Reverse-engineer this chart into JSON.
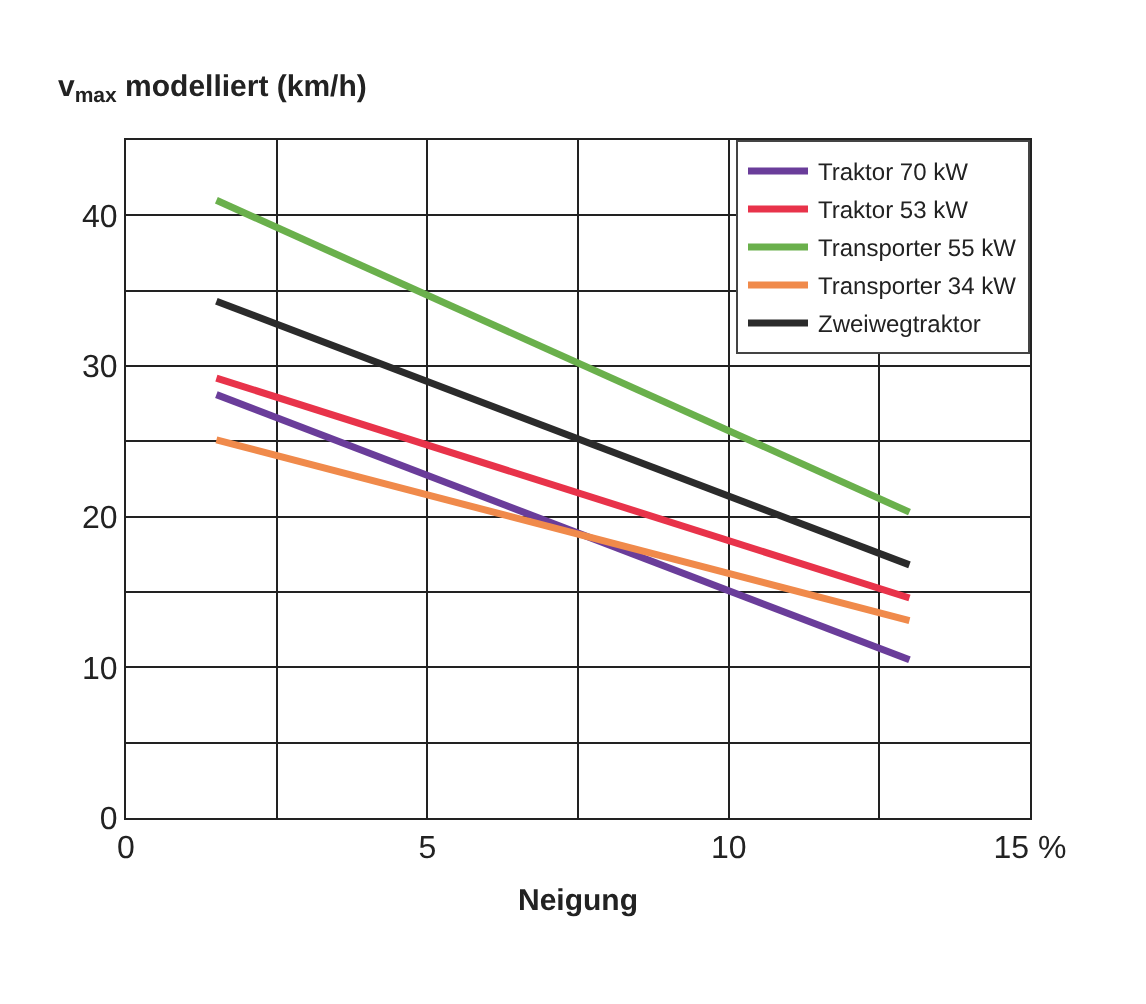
{
  "chart_data": {
    "type": "line",
    "ylabel": "v$_{max}$ modelliert (km/h)",
    "xlabel": "Neigung",
    "xlim": [
      0,
      15
    ],
    "xticks": [
      0,
      {
        "value": 2.5,
        "label": null
      },
      5,
      {
        "value": 7.5,
        "label": null
      },
      10,
      {
        "value": 12.5,
        "label": null
      },
      {
        "value": 15,
        "label": "15 %"
      }
    ],
    "ylim": [
      0,
      45
    ],
    "yticks": [
      0,
      {
        "value": 5,
        "label": null
      },
      10,
      {
        "value": 15,
        "label": null
      },
      20,
      {
        "value": 25,
        "label": null
      },
      30,
      {
        "value": 35,
        "label": null
      },
      40,
      {
        "value": 45,
        "label": null
      }
    ],
    "grid": true,
    "legend": "top right",
    "marker": "none",
    "line_style": "solid",
    "x": [
      1.5,
      13
    ],
    "series": [
      {
        "name": "Traktor 70 kW",
        "color": "#6a3d9a",
        "values": [
          28.1,
          10.5
        ]
      },
      {
        "name": "Traktor 53 kW",
        "color": "#e8334a",
        "values": [
          29.2,
          14.6
        ]
      },
      {
        "name": "Transporter 55 kW",
        "color": "#6ab04c",
        "values": [
          41,
          20.3
        ]
      },
      {
        "name": "Transporter 34 kW",
        "color": "#f08a4b",
        "values": [
          25.1,
          13.1
        ]
      },
      {
        "name": "Zweiwegtraktor",
        "color": "#2b2b2b",
        "values": [
          34.3,
          16.8
        ]
      }
    ]
  }
}
